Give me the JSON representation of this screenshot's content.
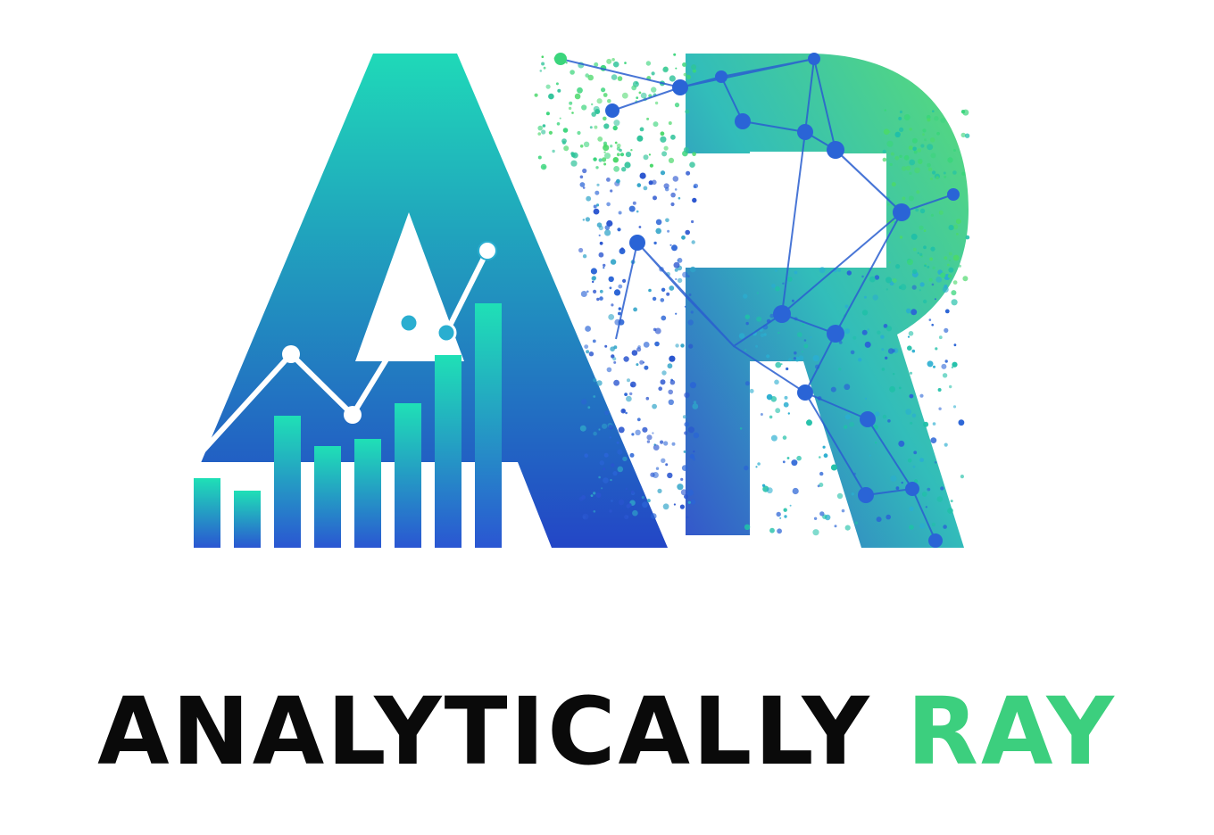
{
  "logo": {
    "monogram": "AR",
    "icons": [
      "bar-chart-icon",
      "line-chart-icon",
      "network-graph-icon",
      "particle-dots-icon"
    ],
    "colors": {
      "teal": "#1fd9b8",
      "blue": "#2346c6",
      "green": "#4bd86b",
      "node": "#2a64d6",
      "white": "#ffffff"
    }
  },
  "wordmark": {
    "word1": "ANALYTICALLY",
    "word2": "RAY",
    "color1": "#0a0a0a",
    "color2": "#3ccf7e"
  }
}
